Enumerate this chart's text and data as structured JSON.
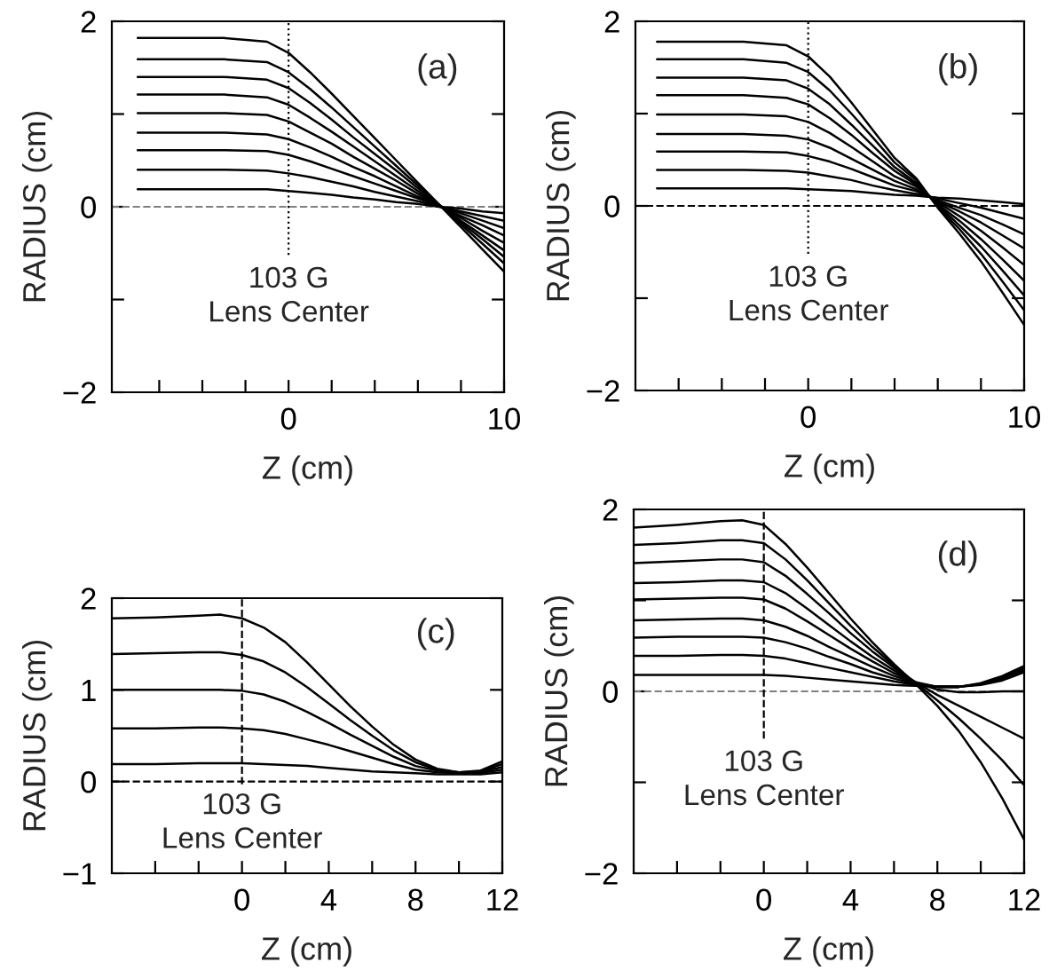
{
  "chart_data": [
    {
      "type": "line",
      "xlabel": "Z (cm)",
      "ylabel": "RADIUS (cm)",
      "annotations": [
        "(a)"
      ],
      "xlim": [
        -8.2,
        10
      ],
      "ylim": [
        -2,
        2
      ],
      "xticks": [
        {
          "value": -6,
          "label": null
        },
        {
          "value": -4,
          "label": null
        },
        {
          "value": -2,
          "label": null
        },
        0,
        {
          "value": 2,
          "label": null
        },
        {
          "value": 4,
          "label": null
        },
        {
          "value": 6,
          "label": null
        },
        {
          "value": 8,
          "label": null
        },
        10
      ],
      "yticks": [
        {
          "value": -2,
          "label": "−2"
        },
        {
          "value": -1,
          "label": null
        },
        0,
        {
          "value": 1,
          "label": null
        },
        2
      ],
      "ref_lines": [
        {
          "axis": "y",
          "value": 0,
          "line_style": "dashed",
          "color": "#808080"
        },
        {
          "axis": "x",
          "value": 0,
          "line_style": "dotted",
          "color": "#000000",
          "label": "103 G\nLens Center"
        }
      ],
      "line_style": "solid",
      "x": [
        -7,
        -3,
        -1,
        0,
        1,
        2,
        3,
        4,
        5,
        6,
        7,
        8,
        9,
        10
      ],
      "series": [
        {
          "color": "#000000",
          "values": [
            1.82,
            1.82,
            1.78,
            1.66,
            1.45,
            1.22,
            0.98,
            0.74,
            0.5,
            0.26,
            0.02,
            -0.22,
            -0.46,
            -0.7
          ]
        },
        {
          "color": "#000000",
          "values": [
            1.59,
            1.59,
            1.56,
            1.45,
            1.27,
            1.07,
            0.86,
            0.65,
            0.44,
            0.23,
            0.02,
            -0.19,
            -0.4,
            -0.61
          ]
        },
        {
          "color": "#000000",
          "values": [
            1.4,
            1.4,
            1.37,
            1.28,
            1.12,
            0.94,
            0.75,
            0.57,
            0.39,
            0.2,
            0.02,
            -0.17,
            -0.35,
            -0.54
          ]
        },
        {
          "color": "#000000",
          "values": [
            1.21,
            1.21,
            1.18,
            1.1,
            0.96,
            0.81,
            0.65,
            0.49,
            0.33,
            0.17,
            0.01,
            -0.15,
            -0.31,
            -0.47
          ]
        },
        {
          "color": "#000000",
          "values": [
            1.01,
            1.01,
            0.99,
            0.92,
            0.8,
            0.68,
            0.54,
            0.41,
            0.28,
            0.14,
            0.01,
            -0.12,
            -0.26,
            -0.39
          ]
        },
        {
          "color": "#000000",
          "values": [
            0.8,
            0.8,
            0.78,
            0.73,
            0.64,
            0.54,
            0.43,
            0.33,
            0.22,
            0.11,
            0.01,
            -0.1,
            -0.2,
            -0.31
          ]
        },
        {
          "color": "#000000",
          "values": [
            0.61,
            0.61,
            0.6,
            0.56,
            0.49,
            0.41,
            0.33,
            0.25,
            0.17,
            0.09,
            0.01,
            -0.07,
            -0.15,
            -0.23
          ]
        },
        {
          "color": "#000000",
          "values": [
            0.4,
            0.4,
            0.39,
            0.36,
            0.32,
            0.27,
            0.22,
            0.16,
            0.11,
            0.06,
            0.0,
            -0.05,
            -0.1,
            -0.15
          ]
        },
        {
          "color": "#000000",
          "values": [
            0.19,
            0.19,
            0.19,
            0.17,
            0.15,
            0.13,
            0.1,
            0.08,
            0.05,
            0.03,
            0.0,
            -0.02,
            -0.05,
            -0.07
          ]
        }
      ]
    },
    {
      "type": "line",
      "xlabel": "Z (cm)",
      "ylabel": "RADIUS (cm)",
      "annotations": [
        "(b)"
      ],
      "xlim": [
        -8,
        10
      ],
      "ylim": [
        -2,
        2
      ],
      "xticks": [
        {
          "value": -6,
          "label": null
        },
        {
          "value": -4,
          "label": null
        },
        {
          "value": -2,
          "label": null
        },
        0,
        {
          "value": 2,
          "label": null
        },
        {
          "value": 4,
          "label": null
        },
        {
          "value": 6,
          "label": null
        },
        {
          "value": 8,
          "label": null
        },
        10
      ],
      "yticks": [
        {
          "value": -2,
          "label": "−2"
        },
        {
          "value": -1,
          "label": null
        },
        0,
        {
          "value": 1,
          "label": null
        },
        2
      ],
      "ref_lines": [
        {
          "axis": "y",
          "value": 0,
          "line_style": "dashed",
          "color": "#000000"
        },
        {
          "axis": "x",
          "value": 0,
          "line_style": "dotted",
          "color": "#000000",
          "label": "103 G\nLens Center"
        }
      ],
      "line_style": "solid",
      "x": [
        -7,
        -3,
        -1,
        0,
        1,
        2,
        3,
        4,
        5,
        6,
        7,
        8,
        9,
        10
      ],
      "series": [
        {
          "color": "#000000",
          "values": [
            1.78,
            1.78,
            1.74,
            1.62,
            1.4,
            1.12,
            0.82,
            0.52,
            0.3,
            -0.02,
            -0.3,
            -0.6,
            -0.94,
            -1.29
          ]
        },
        {
          "color": "#000000",
          "values": [
            1.59,
            1.59,
            1.55,
            1.45,
            1.25,
            1.0,
            0.74,
            0.47,
            0.28,
            -0.01,
            -0.25,
            -0.52,
            -0.82,
            -1.13
          ]
        },
        {
          "color": "#000000",
          "values": [
            1.39,
            1.39,
            1.36,
            1.27,
            1.1,
            0.88,
            0.65,
            0.42,
            0.25,
            0.01,
            -0.21,
            -0.44,
            -0.7,
            -0.97
          ]
        },
        {
          "color": "#000000",
          "values": [
            1.2,
            1.2,
            1.17,
            1.1,
            0.95,
            0.77,
            0.57,
            0.38,
            0.23,
            0.02,
            -0.16,
            -0.36,
            -0.58,
            -0.81
          ]
        },
        {
          "color": "#000000",
          "values": [
            0.99,
            0.99,
            0.97,
            0.91,
            0.79,
            0.64,
            0.48,
            0.32,
            0.21,
            0.04,
            -0.11,
            -0.27,
            -0.45,
            -0.64
          ]
        },
        {
          "color": "#000000",
          "values": [
            0.78,
            0.78,
            0.76,
            0.72,
            0.63,
            0.51,
            0.39,
            0.27,
            0.18,
            0.05,
            -0.06,
            -0.18,
            -0.32,
            -0.46
          ]
        },
        {
          "color": "#000000",
          "values": [
            0.59,
            0.59,
            0.58,
            0.54,
            0.48,
            0.4,
            0.31,
            0.22,
            0.16,
            0.06,
            -0.02,
            -0.1,
            -0.2,
            -0.31
          ]
        },
        {
          "color": "#000000",
          "values": [
            0.39,
            0.39,
            0.38,
            0.36,
            0.32,
            0.28,
            0.22,
            0.17,
            0.13,
            0.08,
            0.03,
            -0.02,
            -0.08,
            -0.14
          ]
        },
        {
          "color": "#000000",
          "values": [
            0.19,
            0.19,
            0.19,
            0.18,
            0.17,
            0.16,
            0.14,
            0.12,
            0.11,
            0.09,
            0.08,
            0.06,
            0.04,
            0.02
          ]
        }
      ]
    },
    {
      "type": "line",
      "xlabel": "Z (cm)",
      "ylabel": "RADIUS (cm)",
      "annotations": [
        "(c)"
      ],
      "xlim": [
        -6,
        12
      ],
      "ylim": [
        -1,
        2
      ],
      "xticks": [
        {
          "value": -4,
          "label": null
        },
        {
          "value": -2,
          "label": null
        },
        0,
        {
          "value": 2,
          "label": null
        },
        4,
        {
          "value": 6,
          "label": null
        },
        8,
        {
          "value": 10,
          "label": null
        },
        12
      ],
      "yticks": [
        {
          "value": -1,
          "label": "−1"
        },
        0,
        1,
        2
      ],
      "ref_lines": [
        {
          "axis": "y",
          "value": 0,
          "line_style": "dashed",
          "color": "#000000"
        },
        {
          "axis": "x",
          "value": 0,
          "line_style": "dashed",
          "color": "#000000",
          "label": "103 G\nLens Center"
        }
      ],
      "line_style": "solid",
      "x": [
        -6,
        -4,
        -2,
        -1,
        0,
        1,
        2,
        3,
        4,
        5,
        6,
        7,
        8,
        9,
        10,
        11,
        12
      ],
      "series": [
        {
          "color": "#000000",
          "values": [
            1.78,
            1.79,
            1.81,
            1.82,
            1.78,
            1.68,
            1.52,
            1.3,
            1.06,
            0.82,
            0.6,
            0.4,
            0.24,
            0.14,
            0.1,
            0.12,
            0.22
          ]
        },
        {
          "color": "#000000",
          "values": [
            1.39,
            1.4,
            1.41,
            1.41,
            1.38,
            1.31,
            1.19,
            1.03,
            0.85,
            0.67,
            0.5,
            0.34,
            0.21,
            0.13,
            0.1,
            0.11,
            0.19
          ]
        },
        {
          "color": "#000000",
          "values": [
            1.0,
            1.0,
            1.0,
            1.0,
            0.99,
            0.95,
            0.87,
            0.76,
            0.64,
            0.51,
            0.39,
            0.27,
            0.17,
            0.12,
            0.09,
            0.1,
            0.16
          ]
        },
        {
          "color": "#000000",
          "values": [
            0.58,
            0.58,
            0.59,
            0.59,
            0.58,
            0.56,
            0.52,
            0.46,
            0.4,
            0.33,
            0.26,
            0.19,
            0.13,
            0.1,
            0.09,
            0.09,
            0.13
          ]
        },
        {
          "color": "#000000",
          "values": [
            0.19,
            0.19,
            0.2,
            0.2,
            0.2,
            0.19,
            0.18,
            0.17,
            0.15,
            0.13,
            0.11,
            0.1,
            0.09,
            0.08,
            0.08,
            0.08,
            0.1
          ]
        }
      ]
    },
    {
      "type": "line",
      "xlabel": "Z (cm)",
      "ylabel": "RADIUS (cm)",
      "annotations": [
        "(d)"
      ],
      "xlim": [
        -6,
        12
      ],
      "ylim": [
        -2,
        2
      ],
      "xticks": [
        {
          "value": -4,
          "label": null
        },
        {
          "value": -2,
          "label": null
        },
        0,
        {
          "value": 2,
          "label": null
        },
        4,
        {
          "value": 6,
          "label": null
        },
        8,
        {
          "value": 10,
          "label": null
        },
        12
      ],
      "yticks": [
        {
          "value": -2,
          "label": "−2"
        },
        {
          "value": -1,
          "label": null
        },
        0,
        {
          "value": 1,
          "label": null
        },
        2
      ],
      "ref_lines": [
        {
          "axis": "y",
          "value": 0,
          "line_style": "dashed",
          "color": "#808080"
        },
        {
          "axis": "x",
          "value": 0,
          "line_style": "dashed",
          "color": "#000000",
          "label": "103 G\nLens Center"
        }
      ],
      "line_style": "solid",
      "x": [
        -6,
        -4,
        -2,
        -1,
        0,
        1,
        2,
        3,
        4,
        5,
        6,
        7,
        8,
        9,
        10,
        11,
        12
      ],
      "series": [
        {
          "color": "#000000",
          "values": [
            1.8,
            1.83,
            1.87,
            1.88,
            1.83,
            1.62,
            1.36,
            1.08,
            0.8,
            0.54,
            0.3,
            0.08,
            -0.16,
            -0.44,
            -0.78,
            -1.18,
            -1.63
          ]
        },
        {
          "color": "#000000",
          "values": [
            1.61,
            1.63,
            1.66,
            1.66,
            1.63,
            1.45,
            1.22,
            0.97,
            0.72,
            0.49,
            0.28,
            0.09,
            -0.1,
            -0.3,
            -0.52,
            -0.76,
            -1.03
          ]
        },
        {
          "color": "#000000",
          "values": [
            1.41,
            1.43,
            1.45,
            1.45,
            1.42,
            1.27,
            1.07,
            0.86,
            0.64,
            0.44,
            0.26,
            0.1,
            -0.04,
            -0.16,
            -0.28,
            -0.4,
            -0.52
          ]
        },
        {
          "color": "#000000",
          "values": [
            1.19,
            1.2,
            1.22,
            1.22,
            1.2,
            1.08,
            0.91,
            0.73,
            0.55,
            0.38,
            0.23,
            0.1,
            0.02,
            -0.01,
            -0.01,
            0.0,
            0.0
          ]
        },
        {
          "color": "#000000",
          "values": [
            1.01,
            1.02,
            1.03,
            1.03,
            1.01,
            0.91,
            0.77,
            0.62,
            0.47,
            0.33,
            0.2,
            0.1,
            0.05,
            0.05,
            0.09,
            0.17,
            0.28
          ]
        },
        {
          "color": "#000000",
          "values": [
            0.78,
            0.79,
            0.8,
            0.8,
            0.78,
            0.71,
            0.61,
            0.49,
            0.38,
            0.27,
            0.17,
            0.09,
            0.05,
            0.05,
            0.08,
            0.16,
            0.26
          ]
        },
        {
          "color": "#000000",
          "values": [
            0.59,
            0.6,
            0.6,
            0.6,
            0.59,
            0.54,
            0.47,
            0.38,
            0.3,
            0.21,
            0.14,
            0.08,
            0.05,
            0.05,
            0.08,
            0.15,
            0.25
          ]
        },
        {
          "color": "#000000",
          "values": [
            0.39,
            0.39,
            0.4,
            0.4,
            0.39,
            0.36,
            0.31,
            0.26,
            0.21,
            0.16,
            0.11,
            0.07,
            0.05,
            0.05,
            0.08,
            0.14,
            0.23
          ]
        },
        {
          "color": "#000000",
          "values": [
            0.18,
            0.18,
            0.18,
            0.18,
            0.18,
            0.17,
            0.15,
            0.13,
            0.11,
            0.09,
            0.07,
            0.06,
            0.05,
            0.05,
            0.07,
            0.12,
            0.21
          ]
        }
      ]
    }
  ]
}
